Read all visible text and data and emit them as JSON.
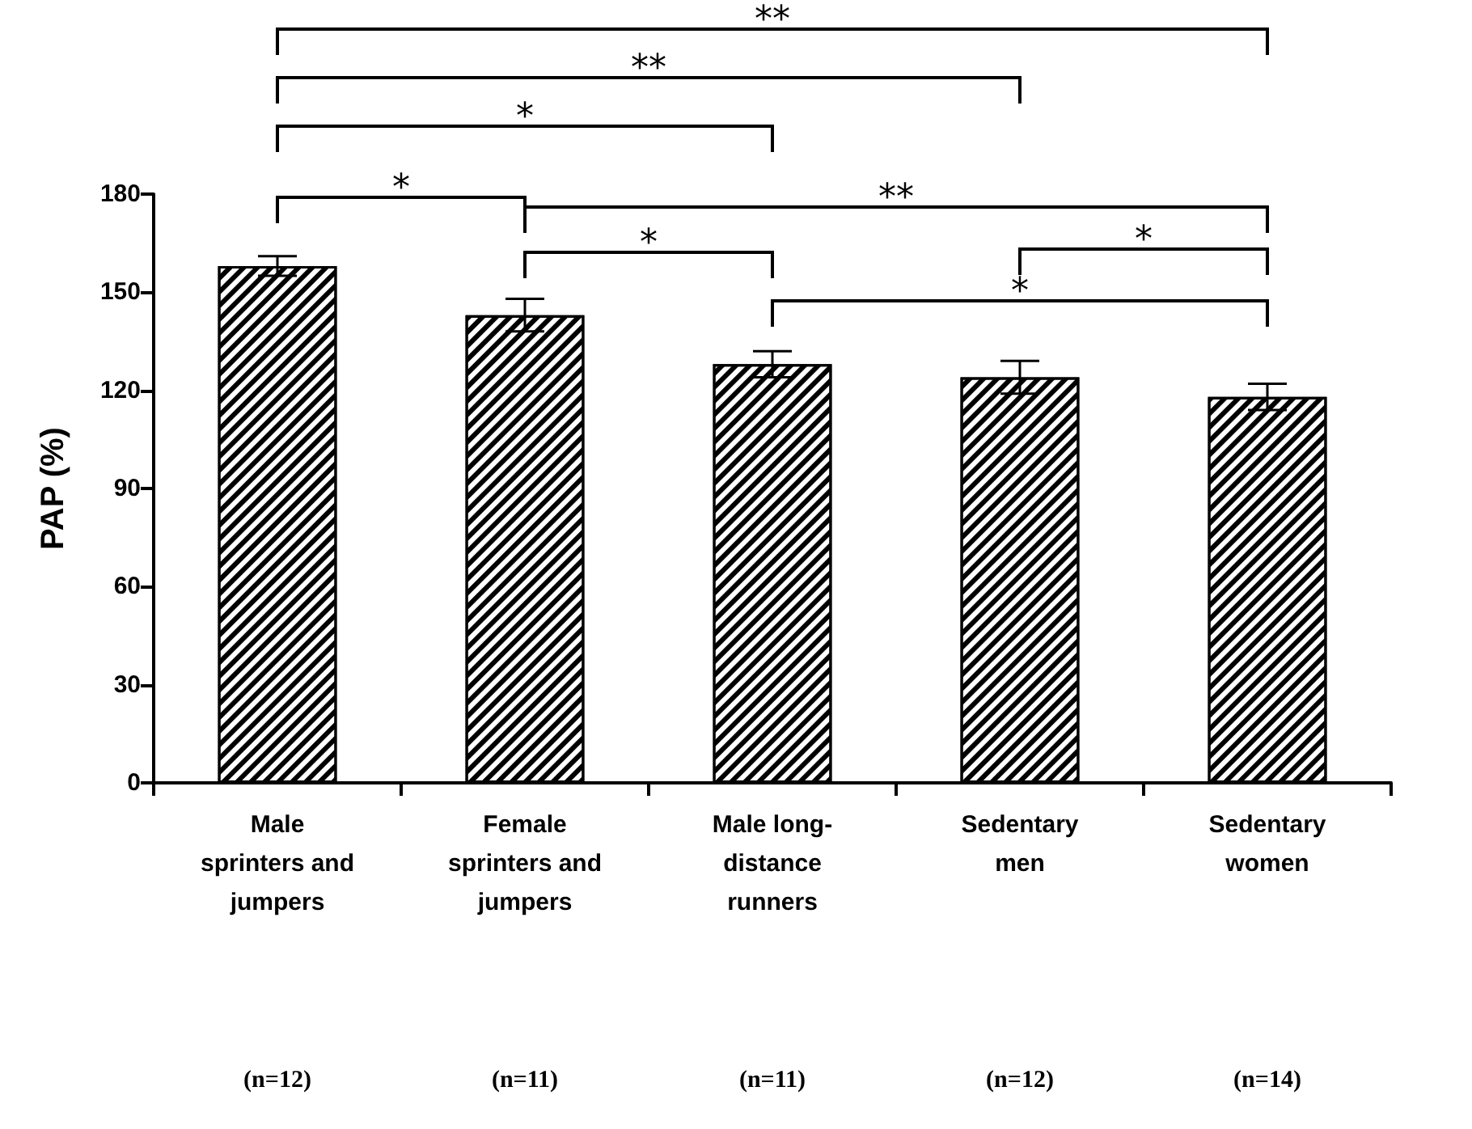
{
  "chart_data": {
    "type": "bar",
    "ylabel": "PAP (%)",
    "categories": [
      "Male\nsprinters and\njumpers",
      "Female\nsprinters and\njumpers",
      "Male long-\ndistance\nrunners",
      "Sedentary\nmen",
      "Sedentary\nwomen"
    ],
    "values": [
      158,
      143,
      128,
      124,
      118
    ],
    "errors": [
      3,
      5,
      4,
      5,
      4
    ],
    "color": "#ffffff",
    "ylim": [
      0,
      180
    ],
    "yticks": [
      0,
      30,
      60,
      90,
      120,
      150,
      180
    ],
    "annotations": [
      "**",
      "**",
      "*",
      "*",
      "**",
      "*",
      "*",
      "*",
      "(n=12)",
      "(n=11)",
      "(n=11)",
      "(n=12)",
      "(n=14)"
    ]
  }
}
